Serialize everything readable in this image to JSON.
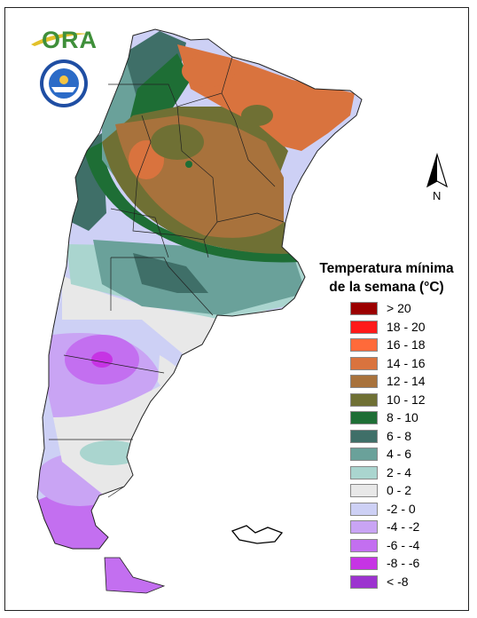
{
  "logo": {
    "text": "ORA"
  },
  "compass": {
    "label": "N"
  },
  "legend": {
    "title_line1": "Temperatura mínima",
    "title_line2": "de la semana (°C)",
    "items": [
      {
        "label": "> 20",
        "color": "#9b0000"
      },
      {
        "label": "18 - 20",
        "color": "#ff1a1a"
      },
      {
        "label": "16 - 18",
        "color": "#ff6a3a"
      },
      {
        "label": "14 - 16",
        "color": "#d9733e"
      },
      {
        "label": "12 - 14",
        "color": "#a8723c"
      },
      {
        "label": "10 - 12",
        "color": "#6f7034"
      },
      {
        "label": "8 - 10",
        "color": "#1e6e35"
      },
      {
        "label": "6 - 8",
        "color": "#3f6f68"
      },
      {
        "label": "4 - 6",
        "color": "#6aa19a"
      },
      {
        "label": "2 - 4",
        "color": "#aad5cf"
      },
      {
        "label": "0 - 2",
        "color": "#e8e8e8"
      },
      {
        "label": "-2 - 0",
        "color": "#cdd0f5"
      },
      {
        "label": "-4 - -2",
        "color": "#c9a4f4"
      },
      {
        "label": "-6 - -4",
        "color": "#c36ff0"
      },
      {
        "label": "-8 - -6",
        "color": "#c634e4"
      },
      {
        "label": "< -8",
        "color": "#9c33cf"
      }
    ]
  }
}
